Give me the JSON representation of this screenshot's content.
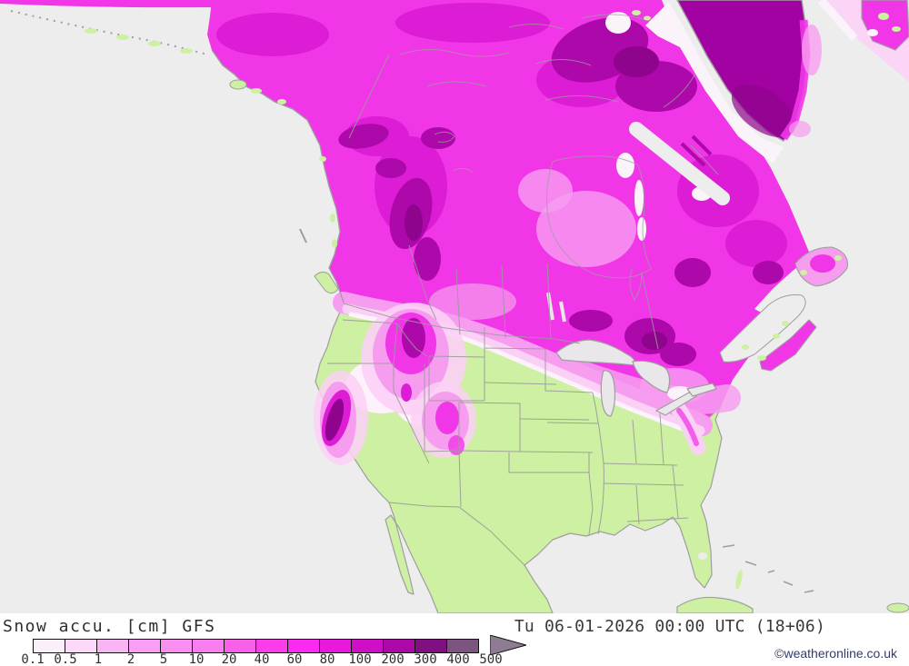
{
  "map": {
    "title": "Snow accu. [cm] GFS",
    "model": "GFS",
    "variable": "Snow accumulation",
    "unit": "cm",
    "datetime": "Tu 06-01-2026 00:00 UTC (18+06)",
    "copyright": "©weatheronline.co.uk",
    "colors": {
      "ocean": "#ededed",
      "land": "#cdf0a2",
      "snow_base": "#f136e8",
      "snow_deep": "#dd1cd5",
      "snow_purple": "#ac08aa",
      "snow_dark": "#8e048c",
      "pink_light": "#f79df0",
      "pink_pale": "#fbd0f6",
      "near_white": "#fdf2fc",
      "ice_white": "#faf4fa",
      "greenland": "#a102a1",
      "lake": "#e9e7e9",
      "coast": "#9e9e9e",
      "border": "#9a9a9a"
    }
  },
  "scale": {
    "unit": "cm",
    "labels": [
      "0.1",
      "0.5",
      "1",
      "2",
      "5",
      "10",
      "20",
      "40",
      "60",
      "80",
      "100",
      "200",
      "300",
      "400",
      "500"
    ],
    "colors": [
      "#faf0fa",
      "#fcd8f9",
      "#f9b4f3",
      "#fa9ff5",
      "#f98ff1",
      "#f87def",
      "#f960e9",
      "#fb3cea",
      "#fb2af2",
      "#e918dd",
      "#ce0fc5",
      "#ac08a8",
      "#801080",
      "#7d5480"
    ],
    "arrow_color": "#8d7c93"
  }
}
